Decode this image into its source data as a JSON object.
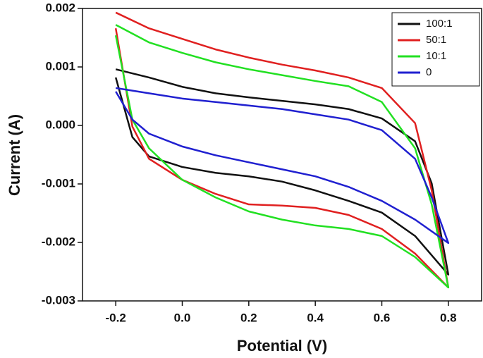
{
  "chart_data": {
    "type": "line",
    "xlabel": "Potential (V)",
    "ylabel": "Current (A)",
    "x": [
      -0.2,
      -0.1,
      0,
      0.1,
      0.2,
      0.3,
      0.4,
      0.5,
      0.6,
      0.7,
      0.75,
      0.8,
      0.8,
      0.7,
      0.6,
      0.5,
      0.4,
      0.3,
      0.2,
      0.1,
      0,
      -0.1,
      -0.15,
      -0.2
    ],
    "series": [
      {
        "name": "100:1",
        "color": "#111111",
        "values": [
          0.00096,
          0.00082,
          0.00066,
          0.00055,
          0.00048,
          0.00042,
          0.00036,
          0.00028,
          0.00012,
          -0.00027,
          -0.00099,
          -0.00255,
          -0.00255,
          -0.00189,
          -0.00149,
          -0.00129,
          -0.00111,
          -0.00096,
          -0.00087,
          -0.00081,
          -0.00071,
          -0.00053,
          -0.0002,
          0.00082
        ]
      },
      {
        "name": "50:1",
        "color": "#e02020",
        "values": [
          0.00193,
          0.00166,
          0.00148,
          0.0013,
          0.00116,
          0.00104,
          0.00094,
          0.00082,
          0.00064,
          4e-05,
          -0.00111,
          -0.00277,
          -0.00277,
          -0.00219,
          -0.00177,
          -0.00153,
          -0.00141,
          -0.00137,
          -0.00135,
          -0.00117,
          -0.00093,
          -0.00057,
          -2e-05,
          0.00166
        ]
      },
      {
        "name": "10:1",
        "color": "#22e022",
        "values": [
          0.00172,
          0.00142,
          0.00124,
          0.00108,
          0.00096,
          0.00086,
          0.00076,
          0.00067,
          0.0004,
          -0.00039,
          -0.00135,
          -0.00277,
          -0.00277,
          -0.00225,
          -0.00189,
          -0.00177,
          -0.00171,
          -0.00161,
          -0.00147,
          -0.00123,
          -0.00093,
          -0.00039,
          0.0001,
          0.00154
        ]
      },
      {
        "name": "0",
        "color": "#2020d0",
        "values": [
          0.00064,
          0.00055,
          0.00046,
          0.0004,
          0.00034,
          0.00028,
          0.00019,
          0.0001,
          -8e-05,
          -0.00057,
          -0.00123,
          -0.00201,
          -0.00201,
          -0.00161,
          -0.00129,
          -0.00105,
          -0.00087,
          -0.00075,
          -0.00063,
          -0.00051,
          -0.00036,
          -0.00014,
          0.0001,
          0.00058
        ]
      }
    ],
    "xlim": [
      -0.3,
      0.9
    ],
    "ylim": [
      -0.003,
      0.002
    ],
    "xticks": [
      -0.2,
      {
        "value": 0,
        "label": "0.0"
      },
      0.2,
      0.4,
      0.6,
      0.8
    ],
    "yticks": [
      -0.003,
      -0.002,
      -0.001,
      {
        "value": 0,
        "label": "0.000"
      },
      0.001,
      0.002
    ],
    "grid": false,
    "legend": "upper right"
  }
}
